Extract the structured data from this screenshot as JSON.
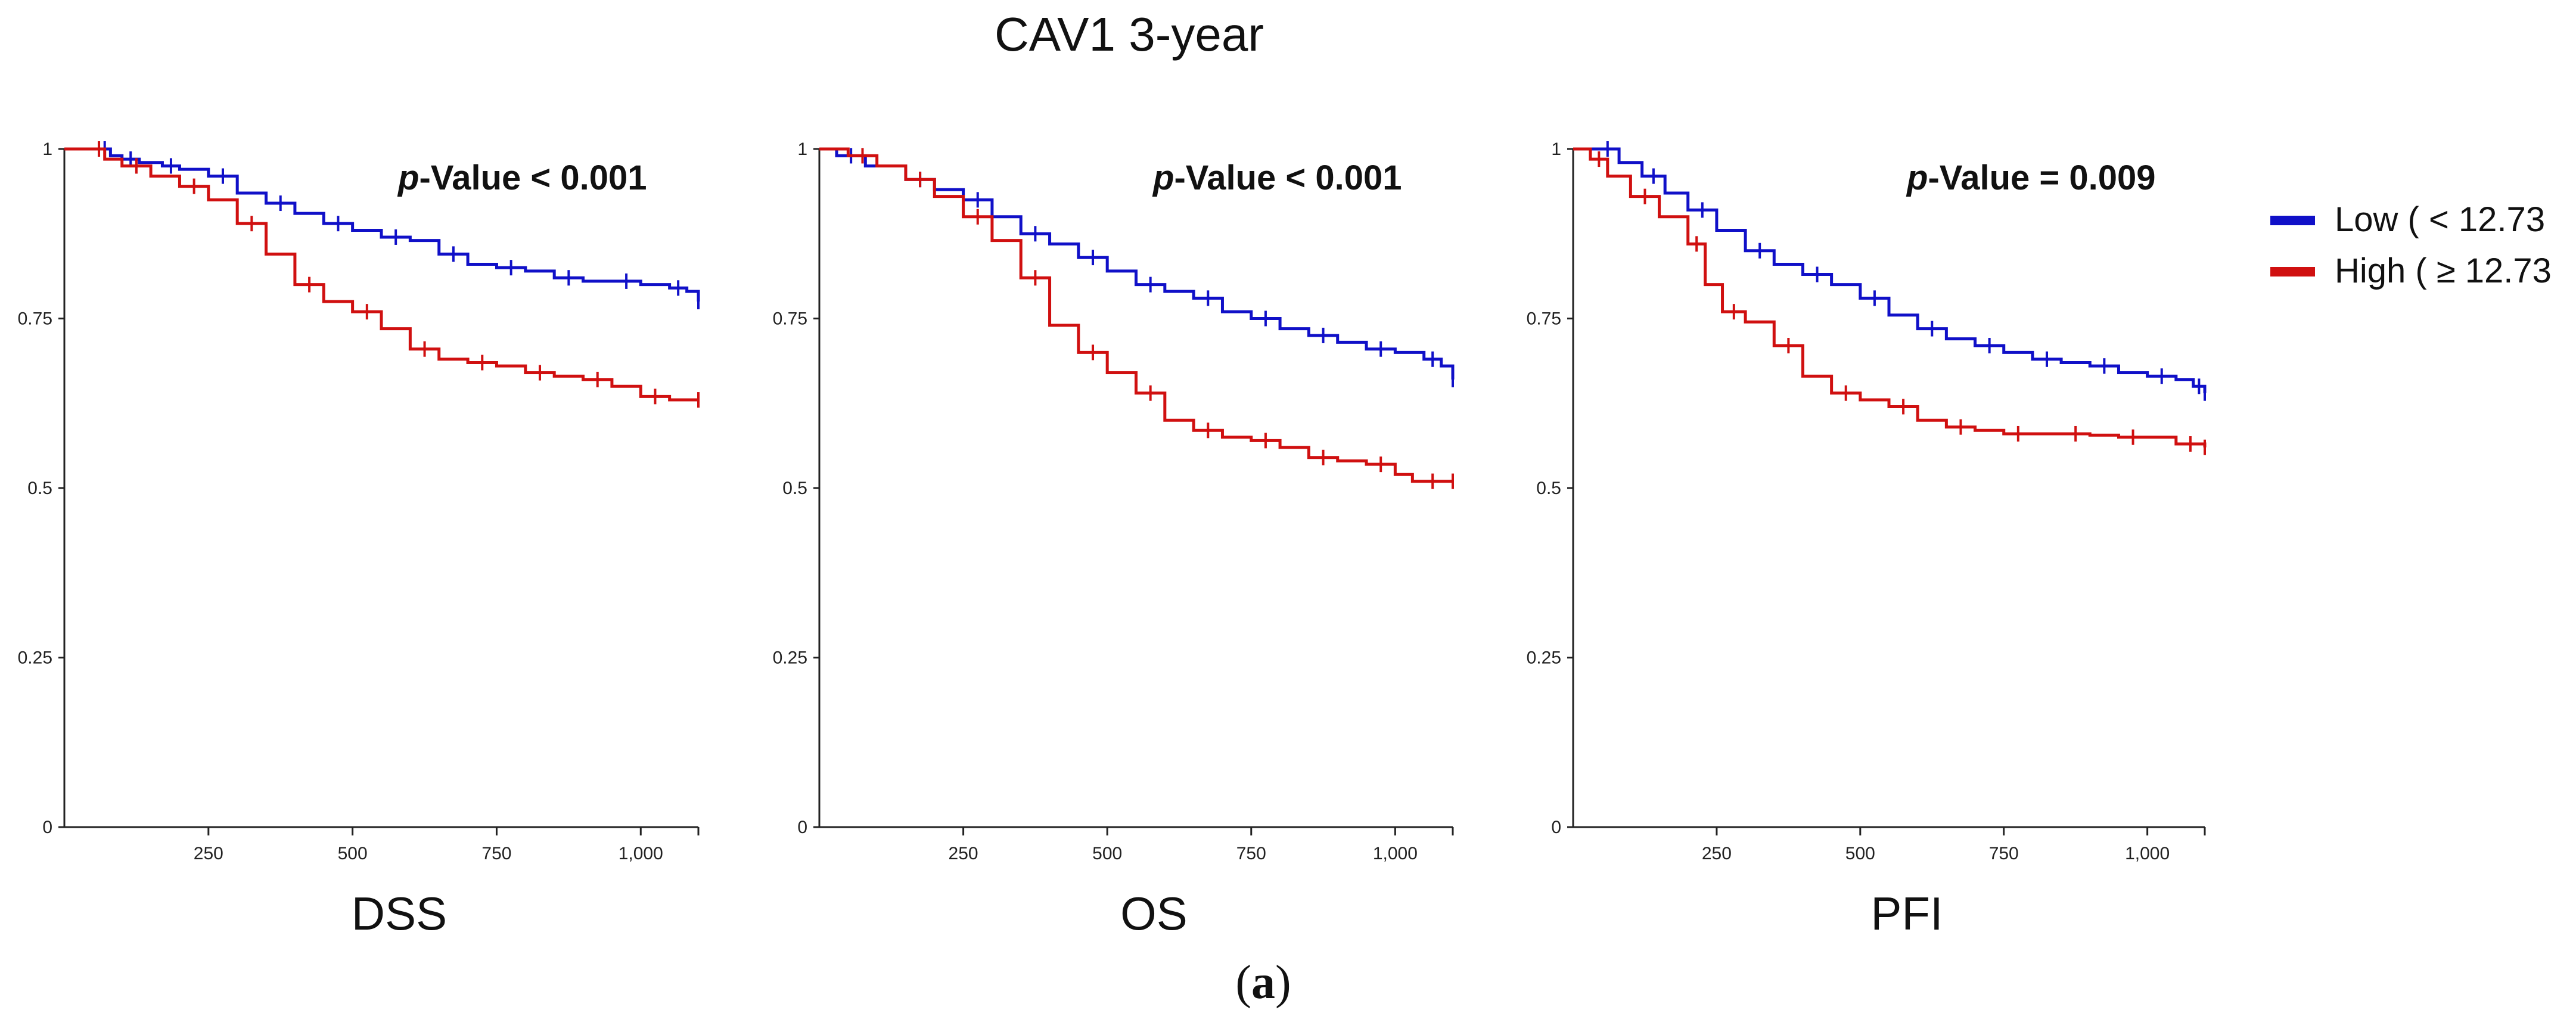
{
  "figure": {
    "title": "CAV1 3-year",
    "subfigure_label": "a"
  },
  "legend": {
    "placement": "right",
    "items": [
      {
        "label": "Low ( < 12.73",
        "color": "#1010c8"
      },
      {
        "label": "High ( ≥ 12.73",
        "color": "#d01010"
      }
    ]
  },
  "chart_data": [
    {
      "type": "line",
      "panel_label": "DSS",
      "pvalue_prefix": "p",
      "pvalue_text": "-Value < 0.001",
      "xlim": [
        0,
        1100
      ],
      "ylim": [
        0,
        1
      ],
      "x_ticks": [
        250,
        500,
        750,
        1000
      ],
      "x_tick_labels": [
        "250",
        "500",
        "750",
        "1,000"
      ],
      "y_ticks": [
        0,
        0.25,
        0.5,
        0.75,
        1
      ],
      "y_tick_labels": [
        "0",
        "0.25",
        "0.5",
        "0.75",
        "1"
      ],
      "series": [
        {
          "color": "#1010c8",
          "points": [
            [
              0,
              1
            ],
            [
              60,
              1
            ],
            [
              80,
              0.99
            ],
            [
              100,
              0.985
            ],
            [
              130,
              0.98
            ],
            [
              170,
              0.975
            ],
            [
              200,
              0.97
            ],
            [
              250,
              0.96
            ],
            [
              300,
              0.935
            ],
            [
              350,
              0.92
            ],
            [
              400,
              0.905
            ],
            [
              450,
              0.89
            ],
            [
              500,
              0.88
            ],
            [
              550,
              0.87
            ],
            [
              600,
              0.865
            ],
            [
              650,
              0.845
            ],
            [
              700,
              0.83
            ],
            [
              750,
              0.825
            ],
            [
              800,
              0.82
            ],
            [
              850,
              0.81
            ],
            [
              900,
              0.805
            ],
            [
              950,
              0.805
            ],
            [
              1000,
              0.8
            ],
            [
              1050,
              0.795
            ],
            [
              1080,
              0.79
            ],
            [
              1100,
              0.775
            ]
          ]
        },
        {
          "color": "#d01010",
          "points": [
            [
              0,
              1
            ],
            [
              50,
              1
            ],
            [
              70,
              0.985
            ],
            [
              100,
              0.975
            ],
            [
              150,
              0.96
            ],
            [
              200,
              0.945
            ],
            [
              250,
              0.925
            ],
            [
              300,
              0.89
            ],
            [
              350,
              0.845
            ],
            [
              400,
              0.8
            ],
            [
              450,
              0.775
            ],
            [
              500,
              0.76
            ],
            [
              550,
              0.735
            ],
            [
              600,
              0.705
            ],
            [
              650,
              0.69
            ],
            [
              700,
              0.685
            ],
            [
              750,
              0.68
            ],
            [
              800,
              0.67
            ],
            [
              850,
              0.665
            ],
            [
              900,
              0.66
            ],
            [
              950,
              0.65
            ],
            [
              1000,
              0.635
            ],
            [
              1050,
              0.63
            ],
            [
              1100,
              0.63
            ]
          ]
        }
      ]
    },
    {
      "type": "line",
      "panel_label": "OS",
      "pvalue_prefix": "p",
      "pvalue_text": "-Value < 0.001",
      "xlim": [
        0,
        1100
      ],
      "ylim": [
        0,
        1
      ],
      "x_ticks": [
        250,
        500,
        750,
        1000
      ],
      "x_tick_labels": [
        "250",
        "500",
        "750",
        "1,000"
      ],
      "y_ticks": [
        0,
        0.25,
        0.5,
        0.75,
        1
      ],
      "y_tick_labels": [
        "0",
        "0.25",
        "0.5",
        "0.75",
        "1"
      ],
      "series": [
        {
          "color": "#1010c8",
          "points": [
            [
              0,
              1
            ],
            [
              30,
              0.99
            ],
            [
              80,
              0.975
            ],
            [
              150,
              0.955
            ],
            [
              200,
              0.94
            ],
            [
              250,
              0.925
            ],
            [
              300,
              0.9
            ],
            [
              350,
              0.875
            ],
            [
              400,
              0.86
            ],
            [
              450,
              0.84
            ],
            [
              500,
              0.82
            ],
            [
              550,
              0.8
            ],
            [
              600,
              0.79
            ],
            [
              650,
              0.78
            ],
            [
              700,
              0.76
            ],
            [
              750,
              0.75
            ],
            [
              800,
              0.735
            ],
            [
              850,
              0.725
            ],
            [
              900,
              0.715
            ],
            [
              950,
              0.705
            ],
            [
              1000,
              0.7
            ],
            [
              1050,
              0.69
            ],
            [
              1080,
              0.68
            ],
            [
              1100,
              0.66
            ]
          ]
        },
        {
          "color": "#d01010",
          "points": [
            [
              0,
              1
            ],
            [
              50,
              0.99
            ],
            [
              100,
              0.975
            ],
            [
              150,
              0.955
            ],
            [
              200,
              0.93
            ],
            [
              250,
              0.9
            ],
            [
              300,
              0.865
            ],
            [
              350,
              0.81
            ],
            [
              400,
              0.74
            ],
            [
              450,
              0.7
            ],
            [
              500,
              0.67
            ],
            [
              550,
              0.64
            ],
            [
              600,
              0.6
            ],
            [
              650,
              0.585
            ],
            [
              700,
              0.575
            ],
            [
              750,
              0.57
            ],
            [
              800,
              0.56
            ],
            [
              850,
              0.545
            ],
            [
              900,
              0.54
            ],
            [
              950,
              0.535
            ],
            [
              1000,
              0.52
            ],
            [
              1030,
              0.51
            ],
            [
              1100,
              0.51
            ]
          ]
        }
      ]
    },
    {
      "type": "line",
      "panel_label": "PFI",
      "pvalue_prefix": "p",
      "pvalue_text": "-Value = 0.009",
      "xlim": [
        0,
        1100
      ],
      "ylim": [
        0,
        1
      ],
      "x_ticks": [
        250,
        500,
        750,
        1000
      ],
      "x_tick_labels": [
        "250",
        "500",
        "750",
        "1,000"
      ],
      "y_ticks": [
        0,
        0.25,
        0.5,
        0.75,
        1
      ],
      "y_tick_labels": [
        "0",
        "0.25",
        "0.5",
        "0.75",
        "1"
      ],
      "series": [
        {
          "color": "#1010c8",
          "points": [
            [
              0,
              1
            ],
            [
              40,
              1
            ],
            [
              80,
              0.98
            ],
            [
              120,
              0.96
            ],
            [
              160,
              0.935
            ],
            [
              200,
              0.91
            ],
            [
              250,
              0.88
            ],
            [
              300,
              0.85
            ],
            [
              350,
              0.83
            ],
            [
              400,
              0.815
            ],
            [
              450,
              0.8
            ],
            [
              500,
              0.78
            ],
            [
              550,
              0.755
            ],
            [
              600,
              0.735
            ],
            [
              650,
              0.72
            ],
            [
              700,
              0.71
            ],
            [
              750,
              0.7
            ],
            [
              800,
              0.69
            ],
            [
              850,
              0.685
            ],
            [
              900,
              0.68
            ],
            [
              950,
              0.67
            ],
            [
              1000,
              0.665
            ],
            [
              1050,
              0.66
            ],
            [
              1080,
              0.65
            ],
            [
              1100,
              0.64
            ]
          ]
        },
        {
          "color": "#d01010",
          "points": [
            [
              0,
              1
            ],
            [
              30,
              0.985
            ],
            [
              60,
              0.96
            ],
            [
              100,
              0.93
            ],
            [
              150,
              0.9
            ],
            [
              200,
              0.86
            ],
            [
              230,
              0.8
            ],
            [
              260,
              0.76
            ],
            [
              300,
              0.745
            ],
            [
              350,
              0.71
            ],
            [
              400,
              0.665
            ],
            [
              450,
              0.64
            ],
            [
              500,
              0.63
            ],
            [
              550,
              0.62
            ],
            [
              600,
              0.6
            ],
            [
              650,
              0.59
            ],
            [
              700,
              0.585
            ],
            [
              750,
              0.58
            ],
            [
              800,
              0.58
            ],
            [
              850,
              0.58
            ],
            [
              900,
              0.578
            ],
            [
              950,
              0.575
            ],
            [
              1000,
              0.575
            ],
            [
              1050,
              0.565
            ],
            [
              1100,
              0.56
            ]
          ]
        }
      ]
    }
  ]
}
